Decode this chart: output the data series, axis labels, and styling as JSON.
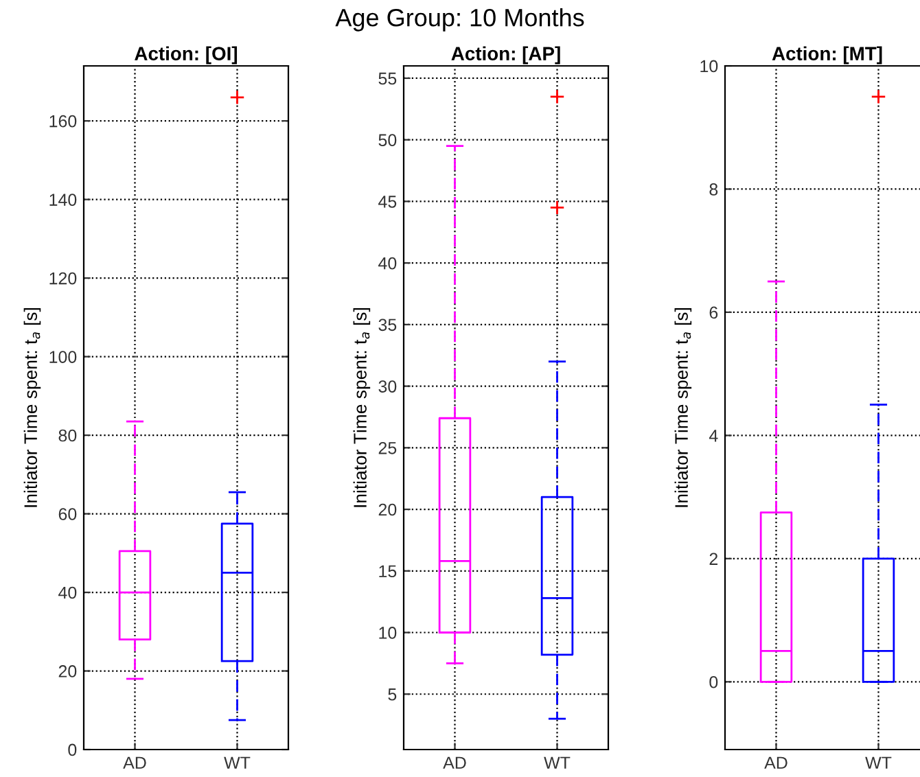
{
  "chart_data": [
    {
      "type": "box",
      "title": "Action: [OI]",
      "ylabel": "Initiator Time spent: t$_{a}$ [s]",
      "annotations": [
        "Age Group: 10 Months"
      ],
      "categories": [
        "AD",
        "WT"
      ],
      "colors": [
        "#ff00ff",
        "#0000ff"
      ],
      "boxes": [
        {
          "low": 18,
          "q1": 28,
          "median": 40,
          "q3": 50.5,
          "high": 83.5
        },
        {
          "low": 7.5,
          "q1": 22.5,
          "median": 45,
          "q3": 57.5,
          "high": 65.5,
          "outliers": [
            166
          ]
        }
      ],
      "ylim": [
        0,
        174
      ],
      "yticks": [
        0,
        20,
        40,
        60,
        80,
        100,
        120,
        140,
        160
      ],
      "grid": true,
      "line_style": "dashed"
    },
    {
      "type": "box",
      "title": "Action: [AP]",
      "ylabel": "Initiator Time spent: t$_{a}$ [s]",
      "categories": [
        "AD",
        "WT"
      ],
      "colors": [
        "#ff00ff",
        "#0000ff"
      ],
      "boxes": [
        {
          "low": 7.5,
          "q1": 10,
          "median": 15.8,
          "q3": 27.4,
          "high": 49.5
        },
        {
          "low": 3,
          "q1": 8.2,
          "median": 12.8,
          "q3": 21,
          "high": 32,
          "outliers": [
            44.5,
            53.5
          ]
        }
      ],
      "ylim": [
        0.5,
        56
      ],
      "yticks": [
        5,
        10,
        15,
        20,
        25,
        30,
        35,
        40,
        45,
        50,
        55
      ],
      "grid": true,
      "line_style": "dashed"
    },
    {
      "type": "box",
      "title": "Action: [MT]",
      "ylabel": "Initiator Time spent: t$_{a}$ [s]",
      "categories": [
        "AD",
        "WT"
      ],
      "colors": [
        "#ff00ff",
        "#0000ff"
      ],
      "boxes": [
        {
          "low": 0,
          "q1": 0,
          "median": 0.5,
          "q3": 2.75,
          "high": 6.5
        },
        {
          "low": 0,
          "q1": 0,
          "median": 0.5,
          "q3": 2,
          "high": 4.5,
          "outliers": [
            9.5
          ]
        }
      ],
      "ylim": [
        -1.1,
        10
      ],
      "yticks": [
        0,
        2,
        4,
        6,
        8,
        10
      ],
      "grid": true,
      "line_style": "dashed"
    }
  ]
}
